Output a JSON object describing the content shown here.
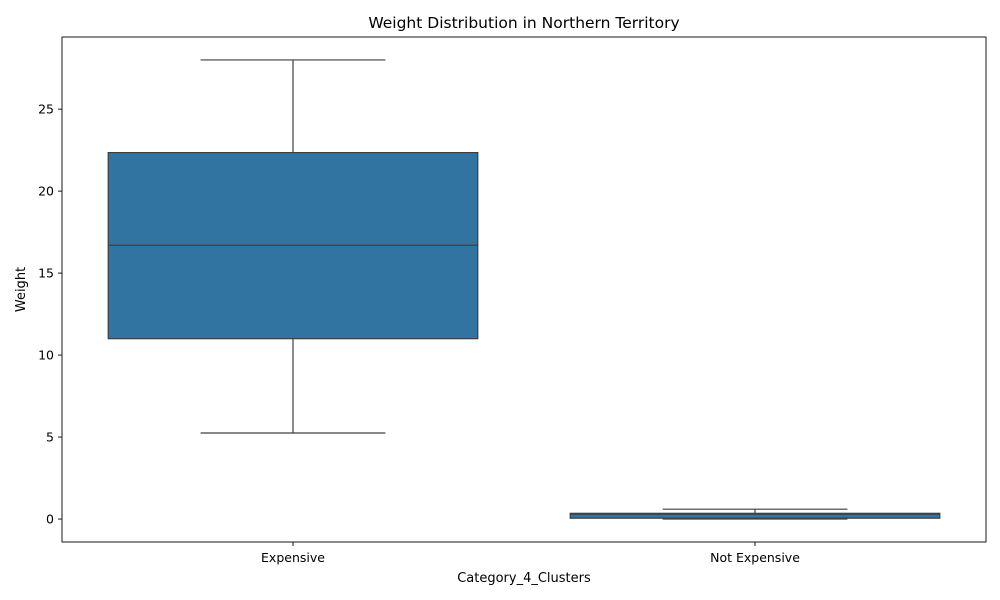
{
  "chart_data": {
    "type": "box",
    "title": "Weight Distribution in Northern Territory",
    "xlabel": "Category_4_Clusters",
    "ylabel": "Weight",
    "categories": [
      "Expensive",
      "Not Expensive"
    ],
    "boxes": [
      {
        "category": "Expensive",
        "whisker_low": 5.25,
        "q1": 11.0,
        "median": 16.7,
        "q3": 22.35,
        "whisker_high": 28.0
      },
      {
        "category": "Not Expensive",
        "whisker_low": 0.0,
        "q1": 0.05,
        "median": 0.3,
        "q3": 0.35,
        "whisker_high": 0.6
      }
    ],
    "ylim": [
      -1.4,
      29.4
    ],
    "yticks": [
      0,
      5,
      10,
      15,
      20,
      25
    ],
    "box_color": "#3274a1",
    "line_color": "#3f3f3f",
    "grid": false
  }
}
